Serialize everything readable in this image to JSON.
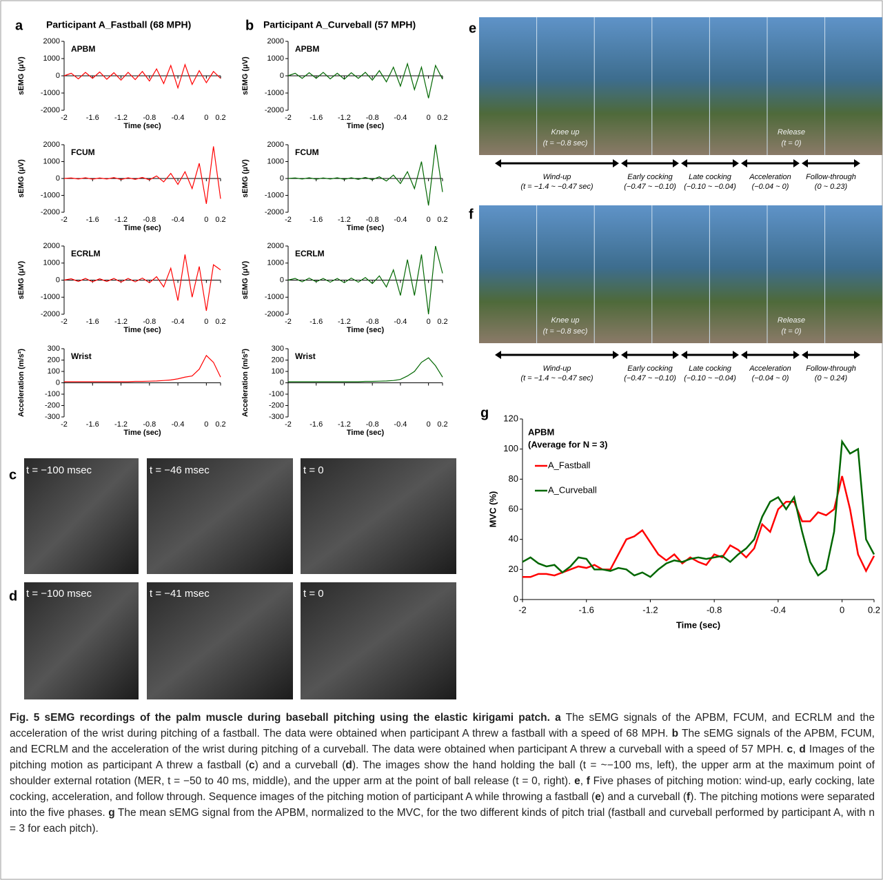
{
  "chart_data": [
    {
      "type": "line",
      "label": "APBM",
      "ylabel": "sEMG (μV)",
      "xlabel": "Time (sec)",
      "xlim": [
        -2,
        0.2
      ],
      "ylim": [
        -2000,
        2000
      ],
      "xticks": [
        -2,
        -1.6,
        -1.2,
        -0.8,
        -0.4,
        0,
        0.2
      ],
      "yticks": [
        -2000,
        -1000,
        0,
        1000,
        2000
      ],
      "x": [
        -2,
        -1.9,
        -1.8,
        -1.7,
        -1.6,
        -1.5,
        -1.4,
        -1.3,
        -1.2,
        -1.1,
        -1,
        -0.9,
        -0.8,
        -0.7,
        -0.6,
        -0.5,
        -0.4,
        -0.3,
        -0.2,
        -0.1,
        0,
        0.1,
        0.2
      ],
      "series": [
        {
          "color": "#ff0000",
          "values": [
            0,
            150,
            -180,
            200,
            -150,
            220,
            -200,
            180,
            -250,
            200,
            -220,
            250,
            -300,
            400,
            -450,
            600,
            -700,
            650,
            -500,
            300,
            -400,
            250,
            -150
          ]
        }
      ]
    },
    {
      "type": "line",
      "label": "FCUM",
      "ylabel": "sEMG (μV)",
      "xlabel": "Time (sec)",
      "xlim": [
        -2,
        0.2
      ],
      "ylim": [
        -2000,
        2000
      ],
      "xticks": [
        -2,
        -1.6,
        -1.2,
        -0.8,
        -0.4,
        0,
        0.2
      ],
      "yticks": [
        -2000,
        -1000,
        0,
        1000,
        2000
      ],
      "x": [
        -2,
        -1.9,
        -1.8,
        -1.7,
        -1.6,
        -1.5,
        -1.4,
        -1.3,
        -1.2,
        -1.1,
        -1,
        -0.9,
        -0.8,
        -0.7,
        -0.6,
        -0.5,
        -0.4,
        -0.3,
        -0.2,
        -0.1,
        0,
        0.1,
        0.2
      ],
      "series": [
        {
          "color": "#ff0000",
          "values": [
            0,
            30,
            -30,
            40,
            -40,
            30,
            -30,
            50,
            -60,
            40,
            -50,
            60,
            -80,
            150,
            -200,
            300,
            -350,
            400,
            -600,
            900,
            -1500,
            1900,
            -1200
          ]
        }
      ]
    },
    {
      "type": "line",
      "label": "ECRLM",
      "ylabel": "sEMG (μV)",
      "xlabel": "Time (sec)",
      "xlim": [
        -2,
        0.2
      ],
      "ylim": [
        -2000,
        2000
      ],
      "xticks": [
        -2,
        -1.6,
        -1.2,
        -0.8,
        -0.4,
        0,
        0.2
      ],
      "yticks": [
        -2000,
        -1000,
        0,
        1000,
        2000
      ],
      "x": [
        -2,
        -1.9,
        -1.8,
        -1.7,
        -1.6,
        -1.5,
        -1.4,
        -1.3,
        -1.2,
        -1.1,
        -1,
        -0.9,
        -0.8,
        -0.7,
        -0.6,
        -0.5,
        -0.4,
        -0.3,
        -0.2,
        -0.1,
        0,
        0.1,
        0.2
      ],
      "series": [
        {
          "color": "#ff0000",
          "values": [
            0,
            80,
            -80,
            100,
            -100,
            80,
            -80,
            100,
            -120,
            100,
            -100,
            120,
            -150,
            200,
            -400,
            700,
            -1200,
            1500,
            -1000,
            800,
            -1800,
            900,
            600
          ]
        }
      ]
    },
    {
      "type": "line",
      "label": "Wrist",
      "ylabel": "Acceleration (m/s²)",
      "xlabel": "Time (sec)",
      "xlim": [
        -2,
        0.2
      ],
      "ylim": [
        -300,
        300
      ],
      "xticks": [
        -2,
        -1.6,
        -1.2,
        -0.8,
        -0.4,
        0,
        0.2
      ],
      "yticks": [
        -300,
        -200,
        -100,
        0,
        100,
        200,
        300
      ],
      "x": [
        -2,
        -1.9,
        -1.8,
        -1.7,
        -1.6,
        -1.5,
        -1.4,
        -1.3,
        -1.2,
        -1.1,
        -1,
        -0.9,
        -0.8,
        -0.7,
        -0.6,
        -0.5,
        -0.4,
        -0.3,
        -0.2,
        -0.1,
        0,
        0.1,
        0.2
      ],
      "series": [
        {
          "color": "#ff0000",
          "values": [
            10,
            10,
            10,
            10,
            10,
            10,
            10,
            10,
            10,
            10,
            12,
            12,
            14,
            16,
            20,
            25,
            35,
            50,
            60,
            120,
            240,
            180,
            50
          ]
        }
      ]
    },
    {
      "type": "line",
      "label": "APBM",
      "ylabel": "sEMG (μV)",
      "xlabel": "Time (sec)",
      "xlim": [
        -2,
        0.2
      ],
      "ylim": [
        -2000,
        2000
      ],
      "xticks": [
        -2,
        -1.6,
        -1.2,
        -0.8,
        -0.4,
        0,
        0.2
      ],
      "yticks": [
        -2000,
        -1000,
        0,
        1000,
        2000
      ],
      "x": [
        -2,
        -1.9,
        -1.8,
        -1.7,
        -1.6,
        -1.5,
        -1.4,
        -1.3,
        -1.2,
        -1.1,
        -1,
        -0.9,
        -0.8,
        -0.7,
        -0.6,
        -0.5,
        -0.4,
        -0.3,
        -0.2,
        -0.1,
        0,
        0.1,
        0.2
      ],
      "series": [
        {
          "color": "#006600",
          "values": [
            0,
            150,
            -150,
            180,
            -150,
            200,
            -180,
            150,
            -200,
            180,
            -150,
            200,
            -250,
            300,
            -350,
            500,
            -600,
            700,
            -800,
            500,
            -1300,
            600,
            -200
          ]
        }
      ]
    },
    {
      "type": "line",
      "label": "FCUM",
      "ylabel": "sEMG (μV)",
      "xlabel": "Time (sec)",
      "xlim": [
        -2,
        0.2
      ],
      "ylim": [
        -2000,
        2000
      ],
      "xticks": [
        -2,
        -1.6,
        -1.2,
        -0.8,
        -0.4,
        0,
        0.2
      ],
      "yticks": [
        -2000,
        -1000,
        0,
        1000,
        2000
      ],
      "x": [
        -2,
        -1.9,
        -1.8,
        -1.7,
        -1.6,
        -1.5,
        -1.4,
        -1.3,
        -1.2,
        -1.1,
        -1,
        -0.9,
        -0.8,
        -0.7,
        -0.6,
        -0.5,
        -0.4,
        -0.3,
        -0.2,
        -0.1,
        0,
        0.1,
        0.2
      ],
      "series": [
        {
          "color": "#006600",
          "values": [
            0,
            30,
            -30,
            40,
            -40,
            30,
            -30,
            40,
            -50,
            40,
            -50,
            60,
            -70,
            100,
            -150,
            200,
            -300,
            400,
            -600,
            1000,
            -1600,
            2000,
            -800
          ]
        }
      ]
    },
    {
      "type": "line",
      "label": "ECRLM",
      "ylabel": "sEMG (μV)",
      "xlabel": "Time (sec)",
      "xlim": [
        -2,
        0.2
      ],
      "ylim": [
        -2000,
        2000
      ],
      "xticks": [
        -2,
        -1.6,
        -1.2,
        -0.8,
        -0.4,
        0,
        0.2
      ],
      "yticks": [
        -2000,
        -1000,
        0,
        1000,
        2000
      ],
      "x": [
        -2,
        -1.9,
        -1.8,
        -1.7,
        -1.6,
        -1.5,
        -1.4,
        -1.3,
        -1.2,
        -1.1,
        -1,
        -0.9,
        -0.8,
        -0.7,
        -0.6,
        -0.5,
        -0.4,
        -0.3,
        -0.2,
        -0.1,
        0,
        0.1,
        0.2
      ],
      "series": [
        {
          "color": "#006600",
          "values": [
            0,
            100,
            -100,
            120,
            -100,
            100,
            -120,
            100,
            -150,
            120,
            -120,
            150,
            -200,
            250,
            -400,
            600,
            -900,
            1200,
            -900,
            1500,
            -2000,
            2000,
            400
          ]
        }
      ]
    },
    {
      "type": "line",
      "label": "Wrist",
      "ylabel": "Acceleration (m/s²)",
      "xlabel": "Time (sec)",
      "xlim": [
        -2,
        0.2
      ],
      "ylim": [
        -300,
        300
      ],
      "xticks": [
        -2,
        -1.6,
        -1.2,
        -0.8,
        -0.4,
        0,
        0.2
      ],
      "yticks": [
        -300,
        -200,
        -100,
        0,
        100,
        200,
        300
      ],
      "x": [
        -2,
        -1.9,
        -1.8,
        -1.7,
        -1.6,
        -1.5,
        -1.4,
        -1.3,
        -1.2,
        -1.1,
        -1,
        -0.9,
        -0.8,
        -0.7,
        -0.6,
        -0.5,
        -0.4,
        -0.3,
        -0.2,
        -0.1,
        0,
        0.1,
        0.2
      ],
      "series": [
        {
          "color": "#006600",
          "values": [
            10,
            10,
            10,
            10,
            10,
            10,
            10,
            10,
            10,
            10,
            10,
            12,
            12,
            14,
            16,
            20,
            30,
            60,
            100,
            180,
            220,
            150,
            50
          ]
        }
      ]
    },
    {
      "type": "line",
      "label": "APBM",
      "sublabel": "(Average for N = 3)",
      "ylabel": "MVC (%)",
      "xlabel": "Time (sec)",
      "xlim": [
        -2,
        0.2
      ],
      "ylim": [
        0,
        120
      ],
      "xticks": [
        -2,
        -1.6,
        -1.2,
        -0.8,
        -0.4,
        0,
        0.2
      ],
      "yticks": [
        0,
        20,
        40,
        60,
        80,
        100,
        120
      ],
      "x": [
        -2,
        -1.95,
        -1.9,
        -1.85,
        -1.8,
        -1.75,
        -1.7,
        -1.65,
        -1.6,
        -1.55,
        -1.5,
        -1.45,
        -1.4,
        -1.35,
        -1.3,
        -1.25,
        -1.2,
        -1.15,
        -1.1,
        -1.05,
        -1,
        -0.95,
        -0.9,
        -0.85,
        -0.8,
        -0.75,
        -0.7,
        -0.65,
        -0.6,
        -0.55,
        -0.5,
        -0.45,
        -0.4,
        -0.35,
        -0.3,
        -0.25,
        -0.2,
        -0.15,
        -0.1,
        -0.05,
        0,
        0.05,
        0.1,
        0.15,
        0.2
      ],
      "series": [
        {
          "name": "A_Fastball",
          "color": "#ff0000",
          "values": [
            15,
            15,
            17,
            17,
            16,
            18,
            20,
            22,
            21,
            23,
            20,
            20,
            30,
            40,
            42,
            46,
            38,
            30,
            26,
            30,
            24,
            28,
            25,
            23,
            30,
            28,
            36,
            33,
            28,
            34,
            50,
            45,
            60,
            65,
            65,
            52,
            52,
            58,
            56,
            60,
            82,
            60,
            30,
            19,
            29
          ]
        },
        {
          "name": "A_Curveball",
          "color": "#006600",
          "values": [
            25,
            28,
            24,
            22,
            23,
            18,
            22,
            28,
            27,
            20,
            20,
            19,
            21,
            20,
            16,
            18,
            15,
            20,
            24,
            26,
            25,
            27,
            28,
            27,
            28,
            29,
            25,
            30,
            34,
            40,
            55,
            65,
            68,
            60,
            68,
            45,
            25,
            16,
            20,
            45,
            105,
            97,
            100,
            40,
            30
          ]
        }
      ]
    }
  ],
  "panels": {
    "a": {
      "letter": "a",
      "title": "Participant A_Fastball (68 MPH)"
    },
    "b": {
      "letter": "b",
      "title": "Participant A_Curveball (57 MPH)"
    },
    "c": {
      "letter": "c",
      "labels": [
        "t = −100 msec",
        "t = −46 msec",
        "t = 0"
      ]
    },
    "d": {
      "letter": "d",
      "labels": [
        "t = −100 msec",
        "t = −41 msec",
        "t = 0"
      ]
    },
    "e": {
      "letter": "e",
      "overlays": [
        "Knee up",
        "(t = −0.8 sec)",
        "Release",
        "(t = 0)"
      ],
      "phases": [
        {
          "name": "Wind-up",
          "range": "(t = −1.4 ~ −0.47 sec)"
        },
        {
          "name": "Early cocking",
          "range": "(−0.47 ~ −0.10)"
        },
        {
          "name": "Late cocking",
          "range": "(−0.10 ~ −0.04)"
        },
        {
          "name": "Acceleration",
          "range": "(−0.04 ~ 0)"
        },
        {
          "name": "Follow-through",
          "range": "(0 ~ 0.23)"
        }
      ]
    },
    "f": {
      "letter": "f",
      "overlays": [
        "Knee up",
        "(t = −0.8 sec)",
        "Release",
        "(t = 0)"
      ],
      "phases": [
        {
          "name": "Wind-up",
          "range": "(t = −1.4 ~ −0.47 sec)"
        },
        {
          "name": "Early cocking",
          "range": "(−0.47 ~ −0.10)"
        },
        {
          "name": "Late cocking",
          "range": "(−0.10 ~ −0.04)"
        },
        {
          "name": "Acceleration",
          "range": "(−0.04 ~ 0)"
        },
        {
          "name": "Follow-through",
          "range": "(0 ~ 0.24)"
        }
      ]
    },
    "g": {
      "letter": "g"
    }
  },
  "caption": [
    {
      "text": "Fig. 5 sEMG recordings of the palm muscle during baseball pitching using the elastic kirigami patch. a",
      "bold": true
    },
    {
      "text": " The sEMG signals of the APBM, FCUM, and ECRLM and the acceleration of the wrist during pitching of a fastball. The data were obtained when participant A threw a fastball with a speed of 68 MPH. "
    },
    {
      "text": "b",
      "bold": true
    },
    {
      "text": " The sEMG signals of the APBM, FCUM, and ECRLM and the acceleration of the wrist during pitching of a curveball. The data were obtained when participant A threw a curveball with a speed of 57 MPH. "
    },
    {
      "text": "c",
      "bold": true
    },
    {
      "text": ", "
    },
    {
      "text": "d",
      "bold": true
    },
    {
      "text": " Images of the pitching motion as participant A threw a fastball ("
    },
    {
      "text": "c",
      "bold": true
    },
    {
      "text": ") and a curveball ("
    },
    {
      "text": "d",
      "bold": true
    },
    {
      "text": "). The images show the hand holding the ball (t = ~−100 ms, left), the upper arm at the maximum point of shoulder external rotation (MER, t = −50 to 40 ms, middle), and the upper arm at the point of ball release (t = 0, right). "
    },
    {
      "text": "e",
      "bold": true
    },
    {
      "text": ", "
    },
    {
      "text": "f",
      "bold": true
    },
    {
      "text": " Five phases of pitching motion: wind-up, early cocking, late cocking, acceleration, and follow through. Sequence images of the pitching motion of participant A while throwing a fastball ("
    },
    {
      "text": "e",
      "bold": true
    },
    {
      "text": ") and a curveball ("
    },
    {
      "text": "f",
      "bold": true
    },
    {
      "text": "). The pitching motions were separated into the five phases. "
    },
    {
      "text": "g",
      "bold": true
    },
    {
      "text": " The mean sEMG signal from the APBM, normalized to the MVC, for the two different kinds of pitch trial (fastball and curveball performed by participant A, with n = 3 for each pitch)."
    }
  ]
}
